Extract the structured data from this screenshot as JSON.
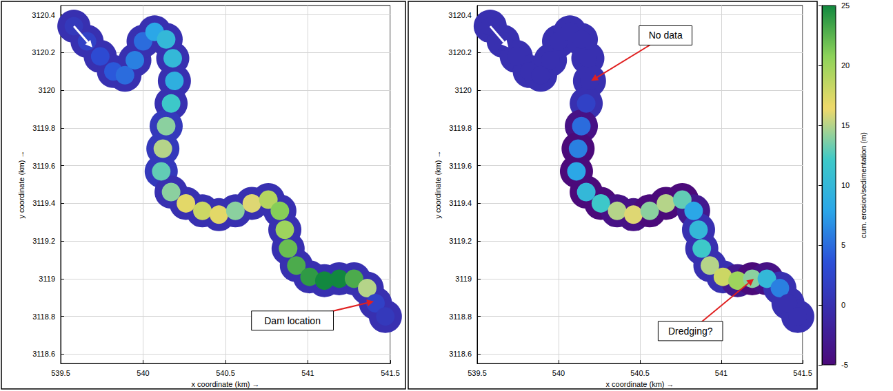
{
  "chart_data": [
    {
      "type": "scatter",
      "x_label": "x coordinate (km) →",
      "y_label": "y coordinate (km) →",
      "xlim": [
        539.5,
        541.5
      ],
      "xticks": [
        539.5,
        540,
        540.5,
        541,
        541.5
      ],
      "ylim": [
        3118.55,
        3120.45
      ],
      "yticks": [
        3118.6,
        3118.8,
        3119,
        3119.2,
        3119.4,
        3119.6,
        3119.8,
        3120,
        3120.2,
        3120.4
      ],
      "grid": true,
      "points": {
        "x": [
          539.58,
          539.66,
          539.74,
          539.82,
          539.89,
          539.95,
          540.0,
          540.07,
          540.14,
          540.18,
          540.19,
          540.17,
          540.14,
          540.12,
          540.11,
          540.17,
          540.26,
          540.36,
          540.46,
          540.56,
          540.66,
          540.76,
          540.83,
          540.86,
          540.88,
          540.93,
          541.01,
          541.1,
          541.19,
          541.28,
          541.36,
          541.41,
          541.47
        ],
        "y": [
          3120.34,
          3120.26,
          3120.18,
          3120.1,
          3120.08,
          3120.16,
          3120.26,
          3120.31,
          3120.27,
          3120.17,
          3120.05,
          3119.93,
          3119.81,
          3119.69,
          3119.57,
          3119.46,
          3119.4,
          3119.36,
          3119.34,
          3119.36,
          3119.4,
          3119.42,
          3119.36,
          3119.26,
          3119.16,
          3119.07,
          3119.01,
          3118.99,
          3119.0,
          3119.0,
          3118.95,
          3118.87,
          3118.8
        ],
        "values": [
          1,
          2,
          3,
          4,
          5,
          6,
          5,
          8,
          10,
          10,
          9,
          12,
          14,
          15,
          13,
          14,
          17,
          18,
          17,
          14,
          16,
          19,
          21,
          20,
          22,
          23,
          24,
          25,
          25,
          23,
          15,
          2,
          1
        ],
        "bank_values": [
          0,
          0,
          0,
          0,
          0,
          0,
          0,
          0,
          0,
          0,
          0,
          0,
          1,
          1,
          1,
          0,
          0,
          0,
          0,
          0,
          0,
          0,
          0,
          0,
          0,
          0,
          0,
          0,
          0,
          0,
          0,
          0,
          0
        ]
      },
      "annotations": [
        {
          "text": "Dam location",
          "x": 541.4,
          "y": 3118.88
        }
      ]
    },
    {
      "type": "scatter",
      "x_label": "x coordinate (km) →",
      "y_label": "y coordinate (km) →",
      "xlim": [
        539.5,
        541.5
      ],
      "xticks": [
        539.5,
        540,
        540.5,
        541,
        541.5
      ],
      "ylim": [
        3118.55,
        3120.45
      ],
      "yticks": [
        3118.6,
        3118.8,
        3119,
        3119.2,
        3119.4,
        3119.6,
        3119.8,
        3120,
        3120.2,
        3120.4
      ],
      "grid": true,
      "points": {
        "x": [
          539.58,
          539.66,
          539.74,
          539.82,
          539.89,
          539.95,
          540.0,
          540.07,
          540.14,
          540.18,
          540.19,
          540.17,
          540.14,
          540.12,
          540.11,
          540.17,
          540.26,
          540.36,
          540.46,
          540.56,
          540.66,
          540.76,
          540.83,
          540.86,
          540.88,
          540.93,
          541.01,
          541.1,
          541.19,
          541.28,
          541.36,
          541.41,
          541.47
        ],
        "y": [
          3120.34,
          3120.26,
          3120.18,
          3120.1,
          3120.08,
          3120.16,
          3120.26,
          3120.31,
          3120.27,
          3120.17,
          3120.05,
          3119.93,
          3119.81,
          3119.69,
          3119.57,
          3119.46,
          3119.4,
          3119.36,
          3119.34,
          3119.36,
          3119.4,
          3119.42,
          3119.36,
          3119.26,
          3119.16,
          3119.07,
          3119.01,
          3118.99,
          3119.0,
          3119.0,
          3118.95,
          3118.87,
          3118.8
        ],
        "values": [
          0,
          0,
          0,
          0,
          0,
          0,
          0,
          0,
          0,
          0,
          0,
          2,
          5,
          6,
          8,
          10,
          12,
          15,
          16,
          14,
          15,
          13,
          8,
          10,
          12,
          15,
          18,
          20,
          14,
          10,
          6,
          0,
          0
        ],
        "bank_values": [
          0,
          0,
          0,
          0,
          0,
          0,
          0,
          0,
          0,
          0,
          0,
          0,
          -4,
          -5,
          -5,
          -5,
          -5,
          -4,
          -4,
          -5,
          -5,
          -5,
          -3,
          0,
          0,
          0,
          0,
          -3,
          -5,
          -4,
          0,
          0,
          0
        ]
      },
      "annotations": [
        {
          "text": "No data",
          "x": 540.2,
          "y": 3120.05
        },
        {
          "text": "Dredging?",
          "x": 541.2,
          "y": 3119.0
        }
      ]
    }
  ],
  "colorbar": {
    "label": "cum. erosion/sedimentation (m)",
    "range": [
      -5,
      25
    ],
    "ticks": [
      -5,
      0,
      5,
      10,
      15,
      20,
      25
    ]
  }
}
